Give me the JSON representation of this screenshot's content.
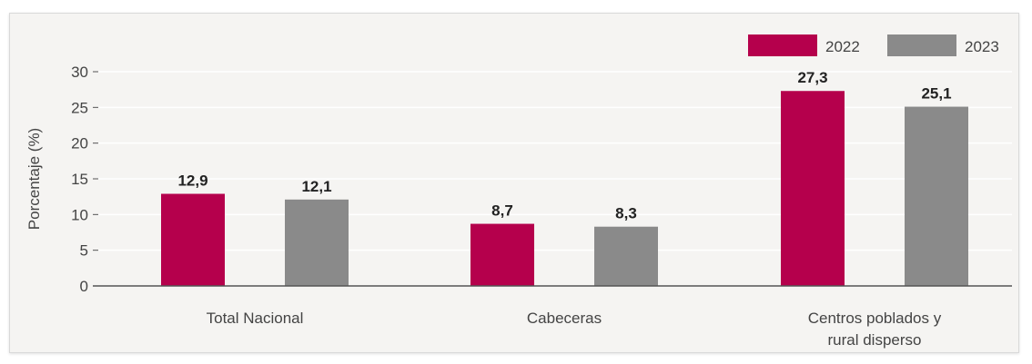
{
  "chart_data": {
    "type": "bar",
    "categories": [
      "Total Nacional",
      "Cabeceras",
      "Centros poblados y rural disperso"
    ],
    "category_lines": [
      [
        "Total Nacional"
      ],
      [
        "Cabeceras"
      ],
      [
        "Centros poblados y",
        "rural disperso"
      ]
    ],
    "series": [
      {
        "name": "2022",
        "values": [
          12.9,
          8.7,
          27.3
        ],
        "labels": [
          "12,9",
          "8,7",
          "27,3"
        ],
        "color": "#b5004c"
      },
      {
        "name": "2023",
        "values": [
          12.1,
          8.3,
          25.1
        ],
        "labels": [
          "12,1",
          "8,3",
          "25,1"
        ],
        "color": "#8a8a8a"
      }
    ],
    "title": "",
    "xlabel": "",
    "ylabel": "Porcentaje (%)",
    "ylim": [
      0,
      30
    ],
    "yticks": [
      0,
      5,
      10,
      15,
      20,
      25,
      30
    ],
    "grid": true,
    "legend": "top-right"
  },
  "colors": {
    "background": "#f5f4f2",
    "grid": "#ffffff",
    "axis": "#555555",
    "text": "#444444",
    "label": "#222222"
  }
}
